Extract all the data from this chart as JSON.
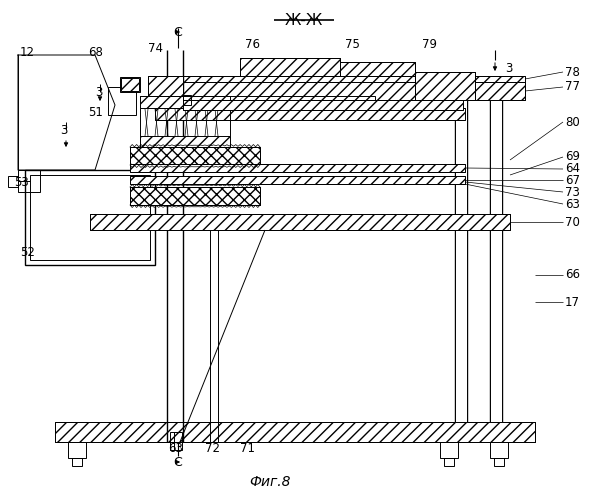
{
  "title": "Ж-Ж",
  "fig_label": "Фиг.8",
  "bg_color": "#ffffff",
  "line_color": "#000000",
  "title_fontsize": 11,
  "fig_label_fontsize": 10,
  "annotation_fontsize": 8.5
}
